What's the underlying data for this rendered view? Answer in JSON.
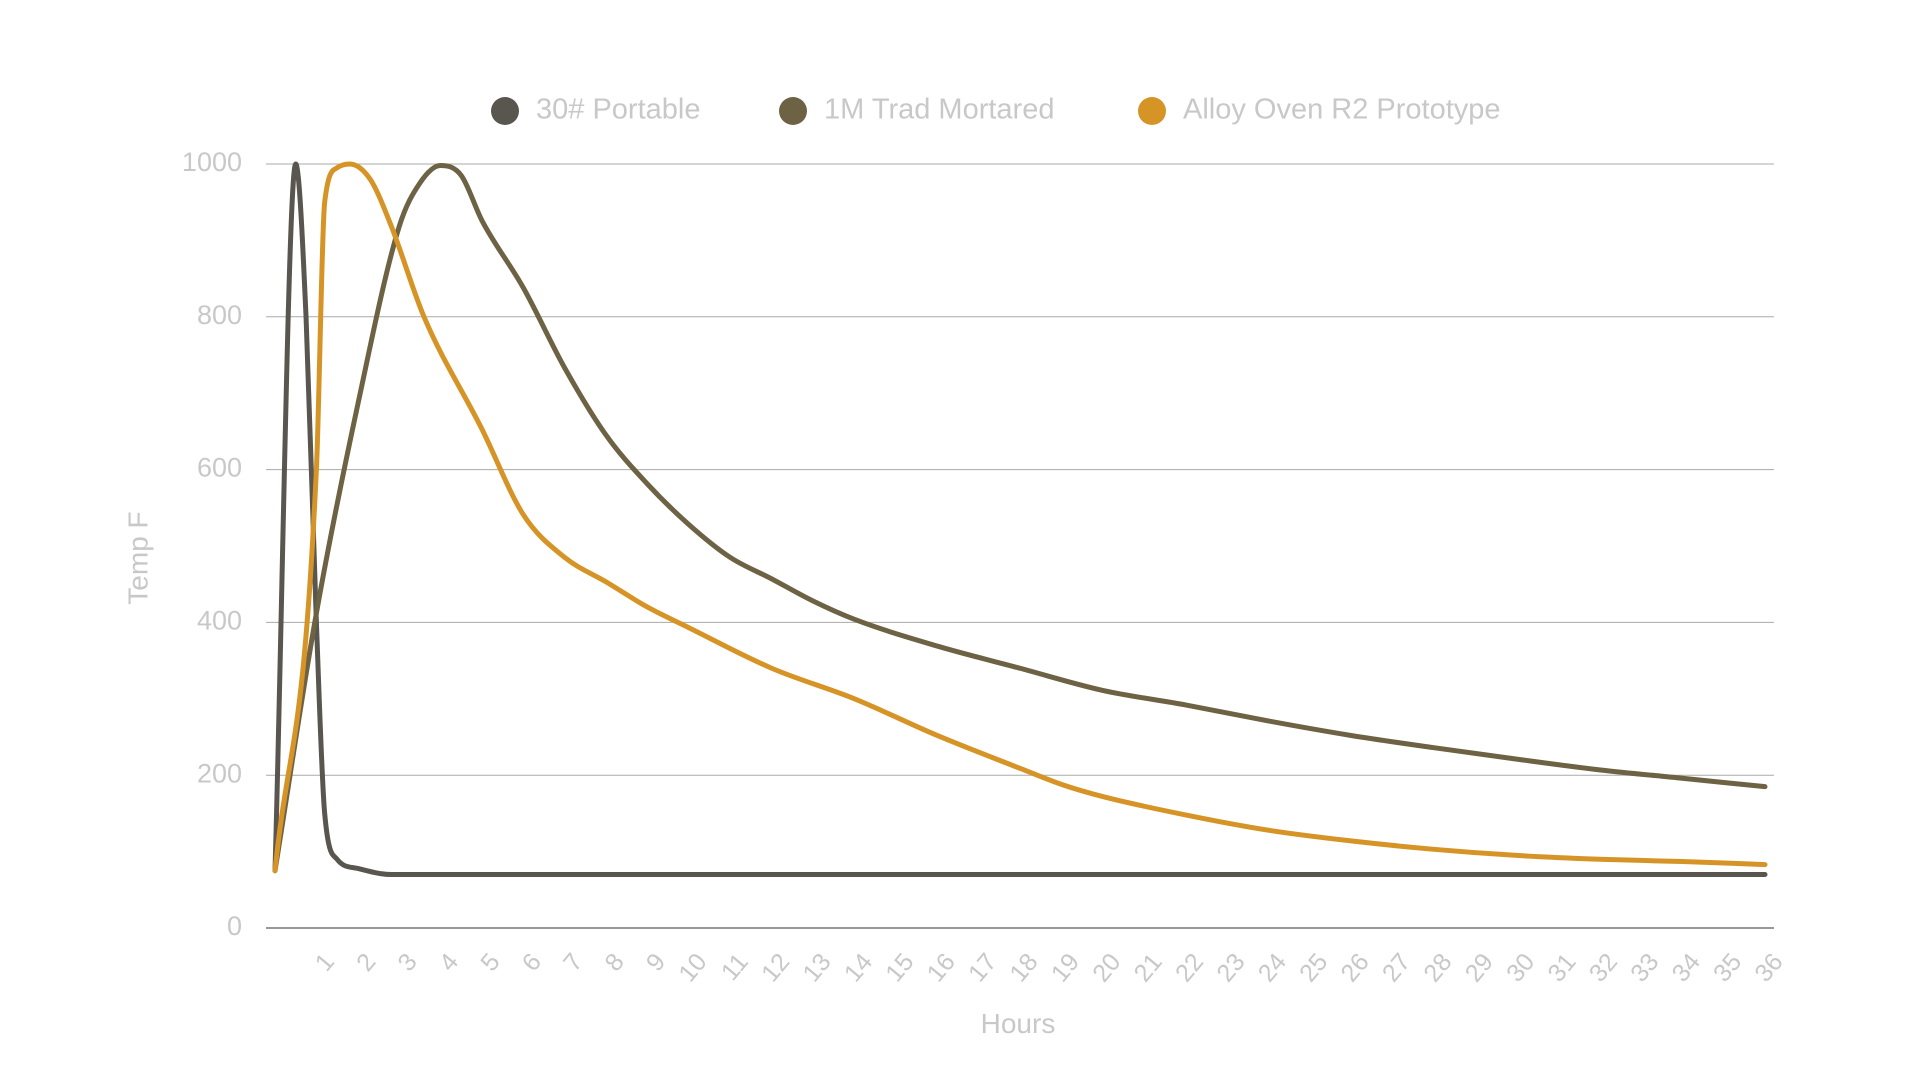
{
  "chart_data": {
    "type": "line",
    "title": "",
    "xlabel": "Hours",
    "ylabel": "Temp F",
    "xlim": [
      0,
      36
    ],
    "ylim": [
      0,
      1000
    ],
    "yticks": [
      0,
      200,
      400,
      600,
      800,
      1000
    ],
    "xtick_labels": [
      "1",
      "2",
      "3",
      "4",
      "5",
      "6",
      "7",
      "8",
      "9",
      "10",
      "11",
      "12",
      "13",
      "14",
      "15",
      "16",
      "17",
      "18",
      "19",
      "20",
      "21",
      "22",
      "23",
      "24",
      "25",
      "26",
      "27",
      "28",
      "29",
      "30",
      "31",
      "32",
      "33",
      "34",
      "35",
      "36"
    ],
    "grid": true,
    "legend_position": "top",
    "series": [
      {
        "name": "30# Portable",
        "color": "#58564f",
        "points": [
          [
            0,
            75
          ],
          [
            0.5,
            1000
          ],
          [
            0.75,
            800
          ],
          [
            1.0,
            400
          ],
          [
            1.2,
            150
          ],
          [
            1.5,
            90
          ],
          [
            2,
            78
          ],
          [
            2.8,
            70
          ],
          [
            36,
            70
          ]
        ]
      },
      {
        "name": "1M Trad Mortared",
        "color": "#6e6244",
        "points": [
          [
            0,
            75
          ],
          [
            1,
            412
          ],
          [
            2,
            685
          ],
          [
            3,
            918
          ],
          [
            3.5,
            975
          ],
          [
            4,
            998
          ],
          [
            4.5,
            985
          ],
          [
            5,
            926
          ],
          [
            6,
            838
          ],
          [
            7,
            733
          ],
          [
            8,
            645
          ],
          [
            9,
            581
          ],
          [
            10,
            528
          ],
          [
            11,
            485
          ],
          [
            12,
            457
          ],
          [
            13,
            428
          ],
          [
            14,
            404
          ],
          [
            16,
            369
          ],
          [
            18,
            340
          ],
          [
            20,
            311
          ],
          [
            22,
            292
          ],
          [
            24,
            271
          ],
          [
            26,
            252
          ],
          [
            28,
            236
          ],
          [
            30,
            221
          ],
          [
            32,
            207
          ],
          [
            34,
            196
          ],
          [
            36,
            185
          ]
        ]
      },
      {
        "name": "Alloy Oven R2 Prototype",
        "color": "#d69426",
        "points": [
          [
            0,
            75
          ],
          [
            1.0,
            600
          ],
          [
            1.2,
            950
          ],
          [
            1.5,
            995
          ],
          [
            1.8,
            1000
          ],
          [
            2.3,
            980
          ],
          [
            2.8,
            920
          ],
          [
            3.6,
            800
          ],
          [
            5,
            653
          ],
          [
            6,
            541
          ],
          [
            7,
            485
          ],
          [
            8,
            453
          ],
          [
            9,
            420
          ],
          [
            10,
            393
          ],
          [
            12,
            340
          ],
          [
            14,
            300
          ],
          [
            16,
            252
          ],
          [
            18,
            209
          ],
          [
            19,
            188
          ],
          [
            20,
            172
          ],
          [
            22,
            148
          ],
          [
            24,
            128
          ],
          [
            26,
            114
          ],
          [
            28,
            103
          ],
          [
            30,
            95
          ],
          [
            32,
            90
          ],
          [
            34,
            87
          ],
          [
            36,
            83
          ]
        ]
      }
    ]
  }
}
